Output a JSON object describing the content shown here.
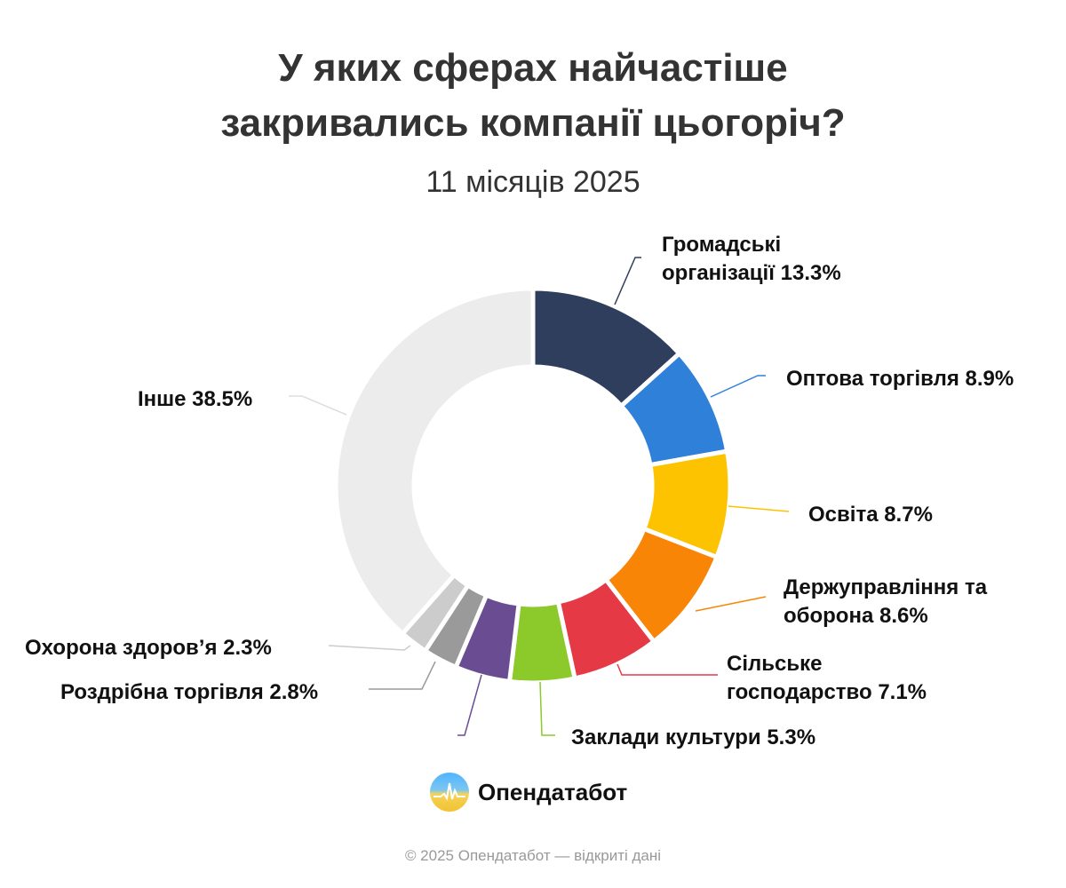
{
  "title_line1": "У яких сферах найчастіше",
  "title_line2": "закривались компанії цьогоріч?",
  "subtitle": "11 місяців 2025",
  "chart_data": {
    "type": "pie",
    "variant": "donut",
    "title": "У яких сферах найчастіше закривались компанії цьогоріч?",
    "subtitle": "11 місяців 2025",
    "start": "top",
    "direction": "clockwise",
    "slices": [
      {
        "name": "Громадські організації",
        "label1": "Громадські",
        "label2": "організації 13.3%",
        "value": 13.3,
        "color": "#2e3e5c"
      },
      {
        "name": "Оптова торгівля",
        "label1": "Оптова торгівля 8.9%",
        "value": 8.9,
        "color": "#2f80d8"
      },
      {
        "name": "Освіта",
        "label1": "Освіта 8.7%",
        "value": 8.7,
        "color": "#fdc300"
      },
      {
        "name": "Держуправління та оборона",
        "label1": "Держуправління та",
        "label2": "оборона 8.6%",
        "value": 8.6,
        "color": "#f98506"
      },
      {
        "name": "Сільське господарство",
        "label1": "Сільське",
        "label2": "господарство 7.1%",
        "value": 7.1,
        "color": "#e63946"
      },
      {
        "name": "Заклади культури",
        "label1": "Заклади культури 5.3%",
        "value": 5.3,
        "color": "#8cc92a"
      },
      {
        "name": "",
        "label1": "",
        "value": 4.5,
        "color": "#6a4c93"
      },
      {
        "name": "Роздрібна торгівля",
        "label1": "Роздрібна торгівля 2.8%",
        "value": 2.8,
        "color": "#9a9a9a"
      },
      {
        "name": "Охорона здоров’я",
        "label1": "Охорона здоров’я 2.3%",
        "value": 2.3,
        "color": "#cccccc"
      },
      {
        "name": "Інше",
        "label1": "Інше 38.5%",
        "value": 38.5,
        "color": "#ececec"
      }
    ]
  },
  "logo": {
    "text": "Опендатабот"
  },
  "footer": "© 2025 Опендатабот — відкриті дані"
}
